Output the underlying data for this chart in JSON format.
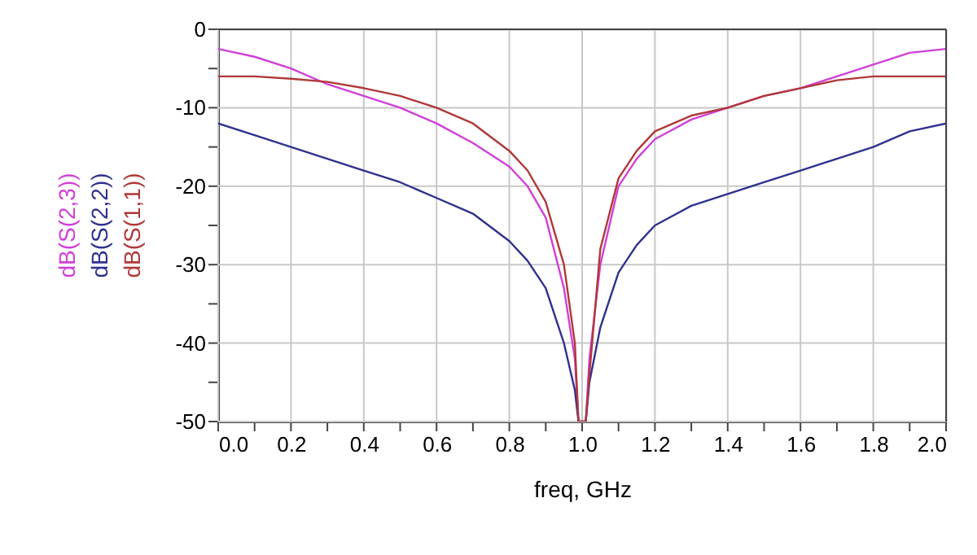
{
  "chart_data": {
    "type": "line",
    "xlabel": "freq, GHz",
    "legend": "left",
    "grid": true,
    "marker": "none",
    "line_style": "solid",
    "xlim": [
      0,
      2
    ],
    "ylim": [
      -50,
      0
    ],
    "xticks": [
      {
        "value": 0,
        "label": "0.0"
      },
      {
        "value": 0.1,
        "label": null
      },
      {
        "value": 0.2,
        "label": "0.2"
      },
      {
        "value": 0.3,
        "label": null
      },
      {
        "value": 0.4,
        "label": "0.4"
      },
      {
        "value": 0.5,
        "label": null
      },
      {
        "value": 0.6,
        "label": "0.6"
      },
      {
        "value": 0.7,
        "label": null
      },
      {
        "value": 0.8,
        "label": "0.8"
      },
      {
        "value": 0.9,
        "label": null
      },
      {
        "value": 1,
        "label": "1.0"
      },
      {
        "value": 1.1,
        "label": null
      },
      {
        "value": 1.2,
        "label": "1.2"
      },
      {
        "value": 1.3,
        "label": null
      },
      {
        "value": 1.4,
        "label": "1.4"
      },
      {
        "value": 1.5,
        "label": null
      },
      {
        "value": 1.6,
        "label": "1.6"
      },
      {
        "value": 1.7,
        "label": null
      },
      {
        "value": 1.8,
        "label": "1.8"
      },
      {
        "value": 1.9,
        "label": null
      },
      {
        "value": 2,
        "label": "2.0"
      }
    ],
    "yticks": [
      0,
      {
        "value": -5,
        "label": null
      },
      -10,
      {
        "value": -15,
        "label": null
      },
      -20,
      {
        "value": -25,
        "label": null
      },
      -30,
      {
        "value": -35,
        "label": null
      },
      -40,
      {
        "value": -45,
        "label": null
      },
      -50
    ],
    "series": [
      {
        "name": "dB(S(2,3))",
        "color": "#d040d8",
        "x": [
          0,
          0.1,
          0.2,
          0.3,
          0.4,
          0.5,
          0.6,
          0.7,
          0.8,
          0.85,
          0.9,
          0.95,
          0.98,
          0.99,
          1.01,
          1.02,
          1.05,
          1.1,
          1.15,
          1.2,
          1.3,
          1.4,
          1.5,
          1.6,
          1.7,
          1.8,
          1.9,
          2
        ],
        "values": [
          -2.5,
          -3.5,
          -5,
          -7,
          -8.5,
          -10,
          -12,
          -14.5,
          -17.5,
          -20,
          -24,
          -33,
          -42,
          -50,
          -50,
          -42,
          -30,
          -20,
          -16.5,
          -14,
          -11.5,
          -10,
          -8.5,
          -7.5,
          -6,
          -4.5,
          -3,
          -2.5
        ]
      },
      {
        "name": "dB(S(2,2))",
        "color": "#303090",
        "x": [
          0,
          0.1,
          0.2,
          0.3,
          0.4,
          0.5,
          0.6,
          0.7,
          0.8,
          0.85,
          0.9,
          0.95,
          0.98,
          0.99,
          1.01,
          1.02,
          1.05,
          1.1,
          1.15,
          1.2,
          1.3,
          1.4,
          1.5,
          1.6,
          1.7,
          1.8,
          1.9,
          2
        ],
        "values": [
          -12,
          -13.5,
          -15,
          -16.5,
          -18,
          -19.5,
          -21.5,
          -23.5,
          -27,
          -29.5,
          -33,
          -40,
          -46,
          -50,
          -50,
          -45,
          -38,
          -31,
          -27.5,
          -25,
          -22.5,
          -21,
          -19.5,
          -18,
          -16.5,
          -15,
          -13,
          -12
        ]
      },
      {
        "name": "dB(S(1,1))",
        "color": "#b03838",
        "x": [
          0,
          0.1,
          0.2,
          0.3,
          0.4,
          0.5,
          0.6,
          0.7,
          0.8,
          0.85,
          0.9,
          0.95,
          0.98,
          0.99,
          1.01,
          1.02,
          1.05,
          1.1,
          1.15,
          1.2,
          1.3,
          1.4,
          1.5,
          1.6,
          1.7,
          1.8,
          1.9,
          2
        ],
        "values": [
          -6,
          -6,
          -6.3,
          -6.7,
          -7.5,
          -8.5,
          -10,
          -12,
          -15.5,
          -18,
          -22,
          -30,
          -40,
          -50,
          -50,
          -44,
          -28,
          -19,
          -15.5,
          -13,
          -11,
          -10,
          -8.5,
          -7.5,
          -6.5,
          -6,
          -6,
          -6
        ]
      }
    ]
  }
}
